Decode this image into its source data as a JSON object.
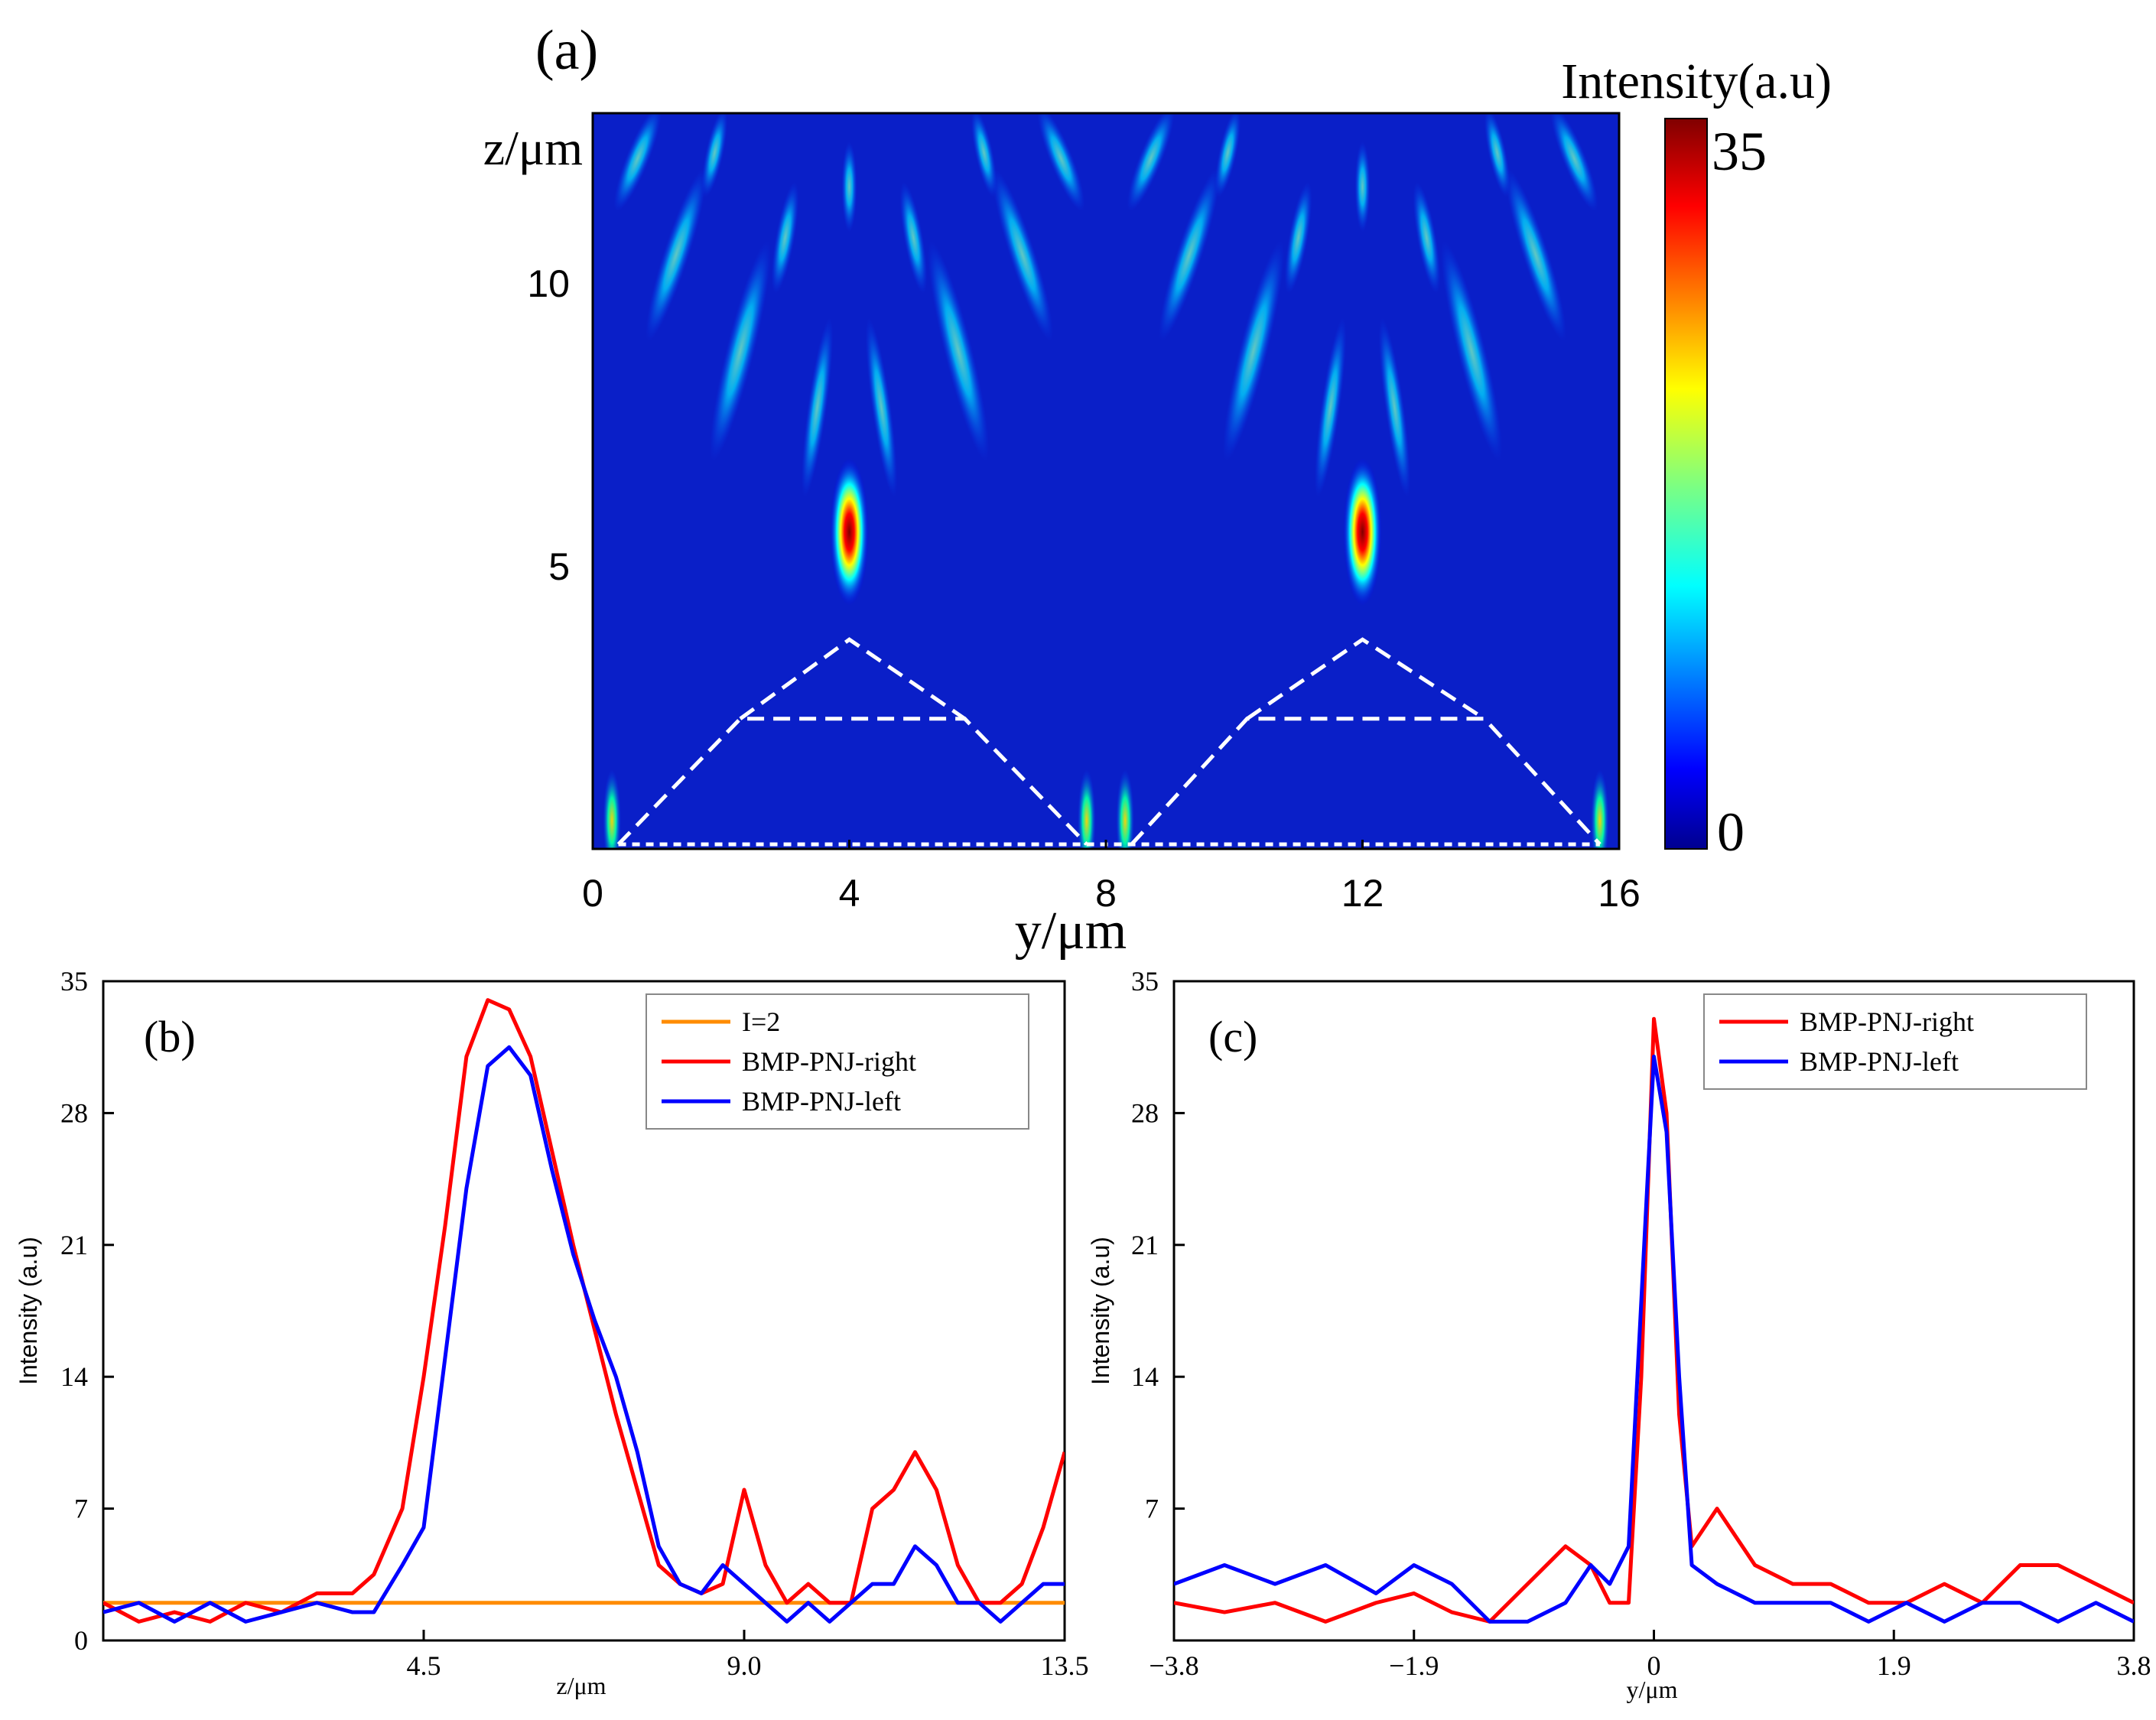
{
  "figure": {
    "panels": [
      "(a)",
      "(b)",
      "(c)"
    ]
  },
  "chart_data": [
    {
      "id": "a",
      "type": "heatmap",
      "label": "(a)",
      "xlabel": "y/μm",
      "ylabel": "z/μm",
      "xlim": [
        0,
        16
      ],
      "ylim": [
        0,
        13
      ],
      "xticks": [
        "0",
        "4",
        "8",
        "12",
        "16"
      ],
      "xtick_values": [
        0,
        4,
        8,
        12,
        16
      ],
      "yticks": [
        "5",
        "10"
      ],
      "ytick_values": [
        5,
        10
      ],
      "colorbar": {
        "title": "Intensity(a.u)",
        "min": 0,
        "max": 35,
        "min_label": "0",
        "max_label": "35",
        "colormap": "jet"
      },
      "hotspots": [
        {
          "y": 4.0,
          "z": 5.6,
          "intensity": 35
        },
        {
          "y": 12.0,
          "z": 5.6,
          "intensity": 35
        }
      ],
      "outlines": [
        {
          "points": [
            [
              0.4,
              0
            ],
            [
              2.3,
              2.3
            ],
            [
              5.8,
              2.3
            ],
            [
              7.7,
              0
            ]
          ],
          "style": "dashed"
        },
        {
          "points": [
            [
              2.3,
              2.3
            ],
            [
              4.0,
              3.7
            ],
            [
              5.8,
              2.3
            ]
          ],
          "style": "dashed"
        },
        {
          "points": [
            [
              8.4,
              0
            ],
            [
              10.2,
              2.3
            ],
            [
              13.9,
              2.3
            ],
            [
              15.7,
              0
            ]
          ],
          "style": "dashed"
        },
        {
          "points": [
            [
              10.2,
              2.3
            ],
            [
              12.0,
              3.7
            ],
            [
              13.9,
              2.3
            ]
          ],
          "style": "dashed"
        },
        {
          "points": [
            [
              0.4,
              0
            ],
            [
              15.7,
              0
            ]
          ],
          "style": "dotted"
        }
      ]
    },
    {
      "id": "b",
      "type": "line",
      "label": "(b)",
      "xlabel": "z/μm",
      "ylabel": "Intensity (a.u)",
      "xlim": [
        0,
        13.5
      ],
      "ylim": [
        0,
        35
      ],
      "xticks": [
        "4.5",
        "9.0",
        "13.5"
      ],
      "xtick_values": [
        4.5,
        9.0,
        13.5
      ],
      "yticks": [
        "0",
        "7",
        "14",
        "21",
        "28",
        "35"
      ],
      "ytick_values": [
        0,
        7,
        14,
        21,
        28,
        35
      ],
      "series": [
        {
          "name": "I=2",
          "color": "#ff8c00",
          "x": [
            0,
            13.5
          ],
          "y": [
            2,
            2
          ]
        },
        {
          "name": "BMP-PNJ-right",
          "color": "#ff0000",
          "x": [
            0,
            0.5,
            1,
            1.5,
            2,
            2.5,
            3,
            3.5,
            3.8,
            4.2,
            4.5,
            4.8,
            5.1,
            5.4,
            5.7,
            6.0,
            6.3,
            6.6,
            6.9,
            7.2,
            7.5,
            7.8,
            8.1,
            8.4,
            8.7,
            9.0,
            9.3,
            9.6,
            9.9,
            10.2,
            10.5,
            10.8,
            11.1,
            11.4,
            11.7,
            12.0,
            12.3,
            12.6,
            12.9,
            13.2,
            13.5
          ],
          "y": [
            2,
            1,
            1.5,
            1,
            2,
            1.5,
            2.5,
            2.5,
            3.5,
            7,
            14,
            22,
            31,
            34,
            33.5,
            31,
            26,
            21,
            16.5,
            12,
            8,
            4,
            3,
            2.5,
            3,
            8,
            4,
            2,
            3,
            2,
            2,
            7,
            8,
            10,
            8,
            4,
            2,
            2,
            3,
            6,
            10
          ]
        },
        {
          "name": "BMP-PNJ-left",
          "color": "#0000ff",
          "x": [
            0,
            0.5,
            1,
            1.5,
            2,
            2.5,
            3,
            3.5,
            3.8,
            4.2,
            4.5,
            4.8,
            5.1,
            5.4,
            5.7,
            6.0,
            6.3,
            6.6,
            6.9,
            7.2,
            7.5,
            7.8,
            8.1,
            8.4,
            8.7,
            9.0,
            9.3,
            9.6,
            9.9,
            10.2,
            10.5,
            10.8,
            11.1,
            11.4,
            11.7,
            12.0,
            12.3,
            12.6,
            12.9,
            13.2,
            13.5
          ],
          "y": [
            1.5,
            2,
            1,
            2,
            1,
            1.5,
            2,
            1.5,
            1.5,
            4,
            6,
            15,
            24,
            30.5,
            31.5,
            30,
            25,
            20.5,
            17,
            14,
            10,
            5,
            3,
            2.5,
            4,
            3,
            2,
            1,
            2,
            1,
            2,
            3,
            3,
            5,
            4,
            2,
            2,
            1,
            2,
            3,
            3
          ]
        }
      ]
    },
    {
      "id": "c",
      "type": "line",
      "label": "(c)",
      "xlabel": "y/μm",
      "ylabel": "Intensity (a.u)",
      "xlim": [
        -3.8,
        3.8
      ],
      "ylim": [
        0,
        35
      ],
      "xticks": [
        "−3.8",
        "−1.9",
        "0",
        "1.9",
        "3.8"
      ],
      "xtick_values": [
        -3.8,
        -1.9,
        0,
        1.9,
        3.8
      ],
      "yticks": [
        "7",
        "14",
        "21",
        "28",
        "35"
      ],
      "ytick_values": [
        7,
        14,
        21,
        28,
        35
      ],
      "series": [
        {
          "name": "BMP-PNJ-right",
          "color": "#ff0000",
          "x": [
            -3.8,
            -3.4,
            -3.0,
            -2.6,
            -2.2,
            -1.9,
            -1.6,
            -1.3,
            -1.0,
            -0.7,
            -0.5,
            -0.35,
            -0.2,
            -0.1,
            0,
            0.1,
            0.2,
            0.3,
            0.5,
            0.8,
            1.1,
            1.4,
            1.7,
            2.0,
            2.3,
            2.6,
            2.9,
            3.2,
            3.5,
            3.8
          ],
          "y": [
            2,
            1.5,
            2,
            1,
            2,
            2.5,
            1.5,
            1,
            3,
            5,
            4,
            2,
            2,
            14,
            33,
            28,
            12,
            5,
            7,
            4,
            3,
            3,
            2,
            2,
            3,
            2,
            4,
            4,
            3,
            2
          ]
        },
        {
          "name": "BMP-PNJ-left",
          "color": "#0000ff",
          "x": [
            -3.8,
            -3.4,
            -3.0,
            -2.6,
            -2.2,
            -1.9,
            -1.6,
            -1.3,
            -1.0,
            -0.7,
            -0.5,
            -0.35,
            -0.2,
            -0.1,
            0,
            0.1,
            0.2,
            0.3,
            0.5,
            0.8,
            1.1,
            1.4,
            1.7,
            2.0,
            2.3,
            2.6,
            2.9,
            3.2,
            3.5,
            3.8
          ],
          "y": [
            3,
            4,
            3,
            4,
            2.5,
            4,
            3,
            1,
            1,
            2,
            4,
            3,
            5,
            18,
            31,
            27,
            14,
            4,
            3,
            2,
            2,
            2,
            1,
            2,
            1,
            2,
            2,
            1,
            2,
            1
          ]
        }
      ]
    }
  ]
}
